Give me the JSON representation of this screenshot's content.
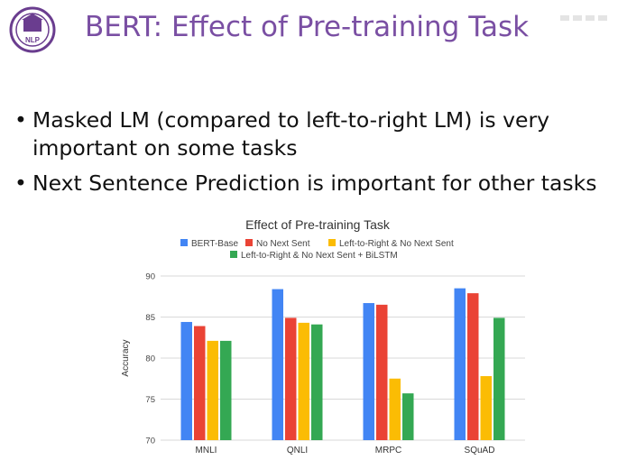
{
  "slide": {
    "title": "BERT: Effect of Pre-training Task",
    "logo_text": "NLP",
    "bullets": [
      "Masked LM (compared to left-to-right LM) is very important on some tasks",
      "Next Sentence Prediction is important for other tasks"
    ]
  },
  "chart_data": {
    "type": "bar",
    "title": "Effect of Pre-training Task",
    "xlabel": "",
    "ylabel": "Accuracy",
    "ylim": [
      70,
      90
    ],
    "yticks": [
      70,
      75,
      80,
      85,
      90
    ],
    "grid": true,
    "legend_position": "top",
    "categories": [
      "MNLI",
      "QNLI",
      "MRPC",
      "SQuAD"
    ],
    "series": [
      {
        "name": "BERT-Base",
        "color": "#4285f4",
        "values": [
          84.4,
          88.4,
          86.7,
          88.5
        ]
      },
      {
        "name": "No Next Sent",
        "color": "#ea4335",
        "values": [
          83.9,
          84.9,
          86.5,
          87.9
        ]
      },
      {
        "name": "Left-to-Right & No Next Sent",
        "color": "#fbbc04",
        "values": [
          82.1,
          84.3,
          77.5,
          77.8
        ]
      },
      {
        "name": "Left-to-Right & No Next Sent + BiLSTM",
        "color": "#34a853",
        "values": [
          82.1,
          84.1,
          75.7,
          84.9
        ]
      }
    ]
  }
}
